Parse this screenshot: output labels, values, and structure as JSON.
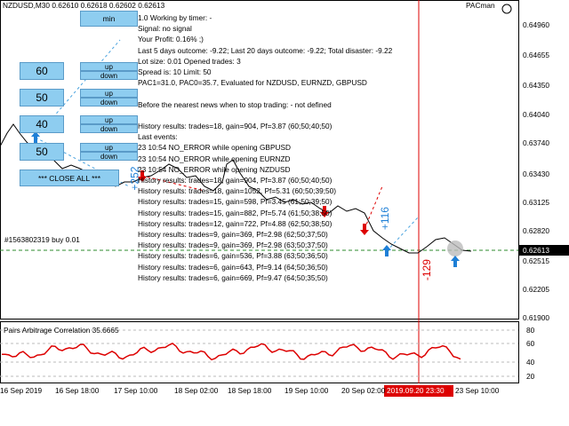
{
  "header": {
    "symbol": "NZDUSD,M30  0.62610 0.62618 0.62602 0.62613",
    "ea_name": "PACman"
  },
  "buttons": {
    "min": "min",
    "levels": [
      "60",
      "50",
      "40",
      "50"
    ],
    "updown": [
      [
        "up",
        "down"
      ],
      [
        "up",
        "down"
      ],
      [
        "up",
        "down"
      ],
      [
        "up",
        "down"
      ]
    ],
    "close_all": "*** CLOSE ALL ***"
  },
  "info_lines": [
    "1.0 Working by timer:  -",
    "Signal: no signal",
    "Your Profit: 0.16% ;)",
    "Last 5 days outcome: -9.22; Last 20 days outcome: -9.22; Total disaster: -9.22",
    "Lot size: 0.01 Opened trades: 3",
    "Spread is: 10 Limit: 50",
    "PAC1=31.0, PAC0=35.7, Evaluated for NZDUSD, EURNZD, GBPUSD"
  ],
  "news_line": "Before the nearest news when to stop trading:  - not defined",
  "history_lines": [
    "History results: trades=18, gain=904, Pf=3.87 (60;50;40;50)",
    "Last events:",
    "23 10:54 NO_ERROR while opening GBPUSD",
    "23 10:54 NO_ERROR while opening EURNZD",
    "23 10:54 NO_ERROR while opening NZDUSD",
    "History results: trades=18, gain=904, Pf=3.87 (60;50;40;50)",
    "History results: trades=18, gain=1052, Pf=5.31 (60;50;39;50)",
    "History results: trades=15, gain=598, Pf=3.45 (61;50;39;50)",
    "History results: trades=15, gain=882, Pf=5.74 (61;50;38;50)",
    "History results: trades=12, gain=722, Pf=4.88 (62;50;38;50)",
    "History results: trades=9, gain=369, Pf=2.98 (62;50;37;50)",
    "History results: trades=9, gain=369, Pf=2.98 (63;50;37;50)",
    "History results: trades=6, gain=536, Pf=3.88 (63;50;36;50)",
    "History results: trades=6, gain=643, Pf=9.14 (64;50;36;50)",
    "History results: trades=6, gain=669, Pf=9.47 (64;50;35;50)"
  ],
  "annotations": [
    "+252",
    "+116",
    "-129"
  ],
  "order_label": "#1563802319 buy 0.01",
  "price_axis": [
    "0.64960",
    "0.64655",
    "0.64350",
    "0.64040",
    "0.63740",
    "0.63430",
    "0.63125",
    "0.62820",
    "0.62515",
    "0.62205",
    "0.61900"
  ],
  "current_price": "0.62613",
  "indicator": {
    "title": "Pairs Arbitrage Correlation 35.6665",
    "ticks": [
      "80",
      "60",
      "40",
      "20"
    ]
  },
  "time_axis": [
    "16 Sep 2019",
    "16 Sep 18:00",
    "17 Sep 10:00",
    "18 Sep 02:00",
    "18 Sep 18:00",
    "19 Sep 10:00",
    "20 Sep 02:00",
    "23 Sep 10:00"
  ],
  "cursor_time": "2019.09.20 23:30"
}
